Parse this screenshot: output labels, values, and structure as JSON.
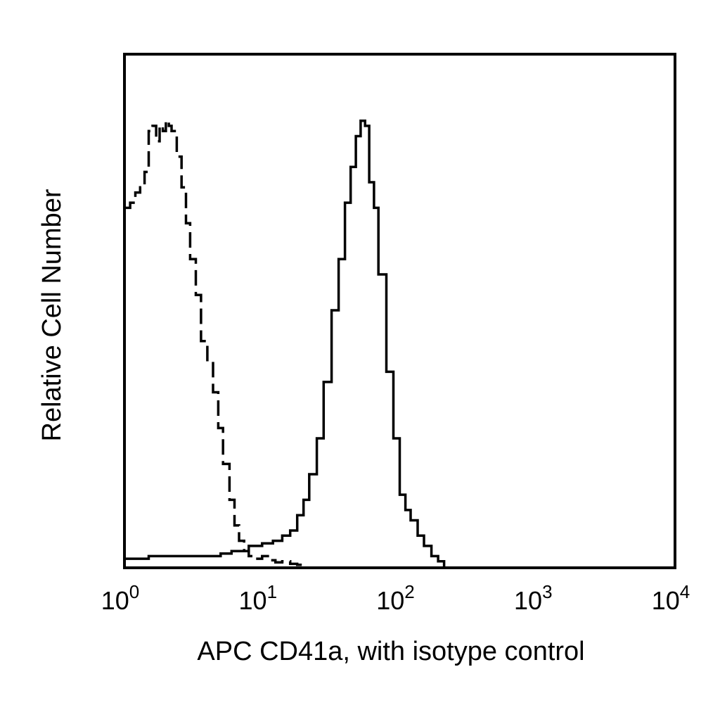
{
  "chart_data": {
    "type": "line",
    "title": "",
    "xlabel": "APC CD41a, with isotype control",
    "ylabel": "Relative Cell Number",
    "x_scale": "log10",
    "xlim": [
      1,
      10000
    ],
    "ylim": [
      0,
      100
    ],
    "grid": false,
    "legend": "none",
    "x_ticks": [
      {
        "value": 1,
        "base": "10",
        "exp": "0"
      },
      {
        "value": 10,
        "base": "10",
        "exp": "1"
      },
      {
        "value": 100,
        "base": "10",
        "exp": "2"
      },
      {
        "value": 1000,
        "base": "10",
        "exp": "3"
      },
      {
        "value": 10000,
        "base": "10",
        "exp": "4"
      }
    ],
    "series": [
      {
        "style": "dashed",
        "color": "#000000",
        "x": [
          1.0,
          1.1,
          1.2,
          1.3,
          1.4,
          1.5,
          1.6,
          1.7,
          1.8,
          1.9,
          2.0,
          2.1,
          2.2,
          2.4,
          2.6,
          2.8,
          3.0,
          3.3,
          3.6,
          4.0,
          4.4,
          4.8,
          5.2,
          5.8,
          6.3,
          6.8,
          7.4,
          8.0,
          9.0,
          10.0,
          11.0,
          12.5,
          14.0,
          16.0,
          18.0,
          20.0
        ],
        "y": [
          70,
          71,
          73,
          74,
          77,
          85,
          86,
          83,
          86,
          85,
          87,
          86,
          85,
          80,
          74,
          67,
          60,
          53,
          44,
          40,
          34,
          27,
          20,
          13,
          8,
          5,
          3,
          2,
          1.5,
          2,
          1.2,
          0.8,
          1.0,
          0.5,
          0.3,
          0
        ]
      },
      {
        "style": "solid",
        "color": "#000000",
        "x": [
          1.0,
          1.5,
          2.0,
          3.0,
          4.0,
          5.0,
          6.0,
          7.0,
          8.0,
          10.0,
          12.0,
          14.0,
          16.0,
          18.0,
          20.0,
          22.0,
          25.0,
          28.0,
          32.0,
          36.0,
          40.0,
          44.0,
          48.0,
          52.0,
          56.0,
          60.0,
          65.0,
          70.0,
          80.0,
          90.0,
          100.0,
          110.0,
          120.0,
          135.0,
          150.0,
          170.0,
          190.0,
          210.0
        ],
        "y": [
          1.5,
          2,
          2,
          2,
          2,
          2.5,
          3,
          3,
          4,
          4.5,
          5,
          6,
          7,
          10,
          13,
          18,
          25,
          36,
          50,
          60,
          71,
          78,
          84,
          87,
          86,
          75,
          70,
          57,
          38,
          25,
          14,
          11,
          9,
          6,
          4,
          2,
          1,
          0
        ]
      }
    ]
  }
}
